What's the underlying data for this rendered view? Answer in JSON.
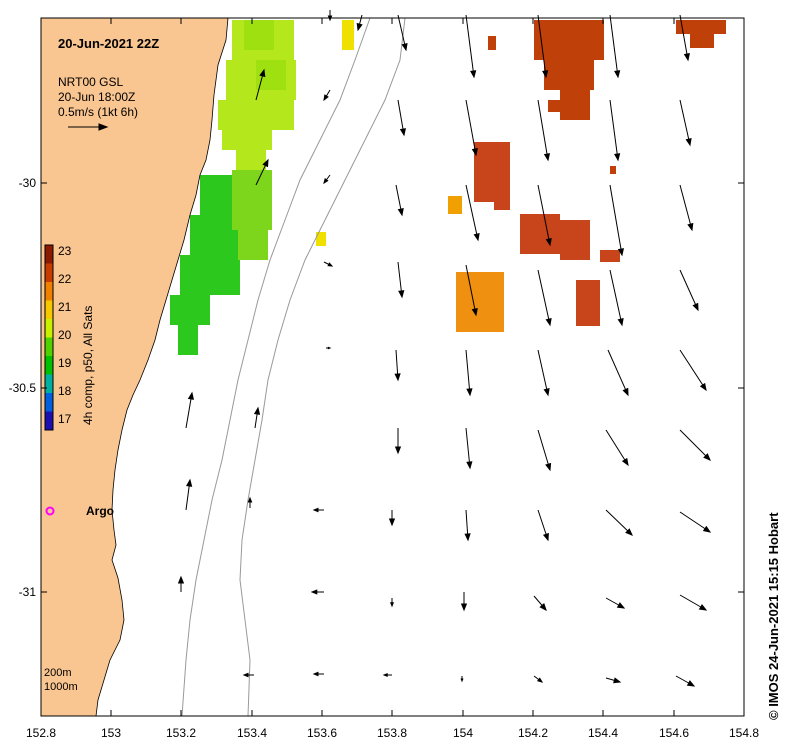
{
  "title": "20-Jun-2021 22Z",
  "legend_box": {
    "line1": "NRT00 GSL",
    "line2": "20-Jun 18:00Z",
    "line3": "0.5m/s (1kt 6h)"
  },
  "colorbar": {
    "label": "4h comp, p50, All Sats",
    "ticks": [
      "23",
      "22",
      "21",
      "20",
      "19",
      "18",
      "17"
    ]
  },
  "axes": {
    "x_ticks": [
      "152.8",
      "153",
      "153.2",
      "153.4",
      "153.6",
      "153.8",
      "154",
      "154.2",
      "154.4",
      "154.6",
      "154.8"
    ],
    "y_ticks": [
      "-30",
      "-30.5",
      "-31"
    ]
  },
  "argo": {
    "label": "Argo"
  },
  "bathy_legend": {
    "line1": "200m",
    "line2": "1000m"
  },
  "credit": "© IMOS 24-Jun-2021 15:15 Hobart",
  "colors": {
    "land": "#f9c590",
    "arrow": "#000000",
    "argo": "#ff00ff",
    "contour": "#999999"
  }
}
